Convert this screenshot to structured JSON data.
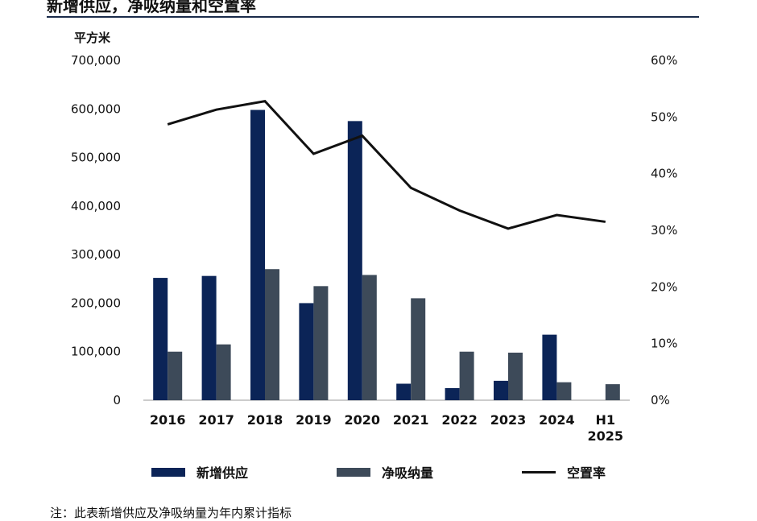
{
  "title": "新增供应，净吸纳量和空置率",
  "unit_label": "平方米",
  "note": "注：此表新增供应及净吸纳量为年内累计指标",
  "colors": {
    "supply": "#0b2457",
    "absorption": "#3d4a59",
    "vacancy": "#111111"
  },
  "chart_data": {
    "type": "bar",
    "categories": [
      "2016",
      "2017",
      "2018",
      "2019",
      "2020",
      "2021",
      "2022",
      "2023",
      "2024",
      "H1 2025"
    ],
    "series": [
      {
        "name": "新增供应",
        "type": "bar",
        "axis": "left",
        "values": [
          252000,
          256000,
          598000,
          200000,
          575000,
          34000,
          25000,
          40000,
          135000,
          0
        ]
      },
      {
        "name": "净吸纳量",
        "type": "bar",
        "axis": "left",
        "values": [
          100000,
          115000,
          270000,
          235000,
          258000,
          210000,
          100000,
          98000,
          37000,
          33000
        ]
      },
      {
        "name": "空置率",
        "type": "line",
        "axis": "right",
        "values": [
          48.7,
          51.3,
          52.8,
          43.5,
          46.7,
          37.5,
          33.5,
          30.3,
          32.7,
          31.5
        ]
      }
    ],
    "yleft": {
      "ylim": [
        0,
        700000
      ],
      "ticks": [
        "0",
        "100,000",
        "200,000",
        "300,000",
        "400,000",
        "500,000",
        "600,000",
        "700,000"
      ]
    },
    "yright": {
      "ylim": [
        0,
        60
      ],
      "ticks": [
        "0%",
        "10%",
        "20%",
        "30%",
        "40%",
        "50%",
        "60%"
      ]
    },
    "grid": false,
    "legend_position": "bottom"
  }
}
